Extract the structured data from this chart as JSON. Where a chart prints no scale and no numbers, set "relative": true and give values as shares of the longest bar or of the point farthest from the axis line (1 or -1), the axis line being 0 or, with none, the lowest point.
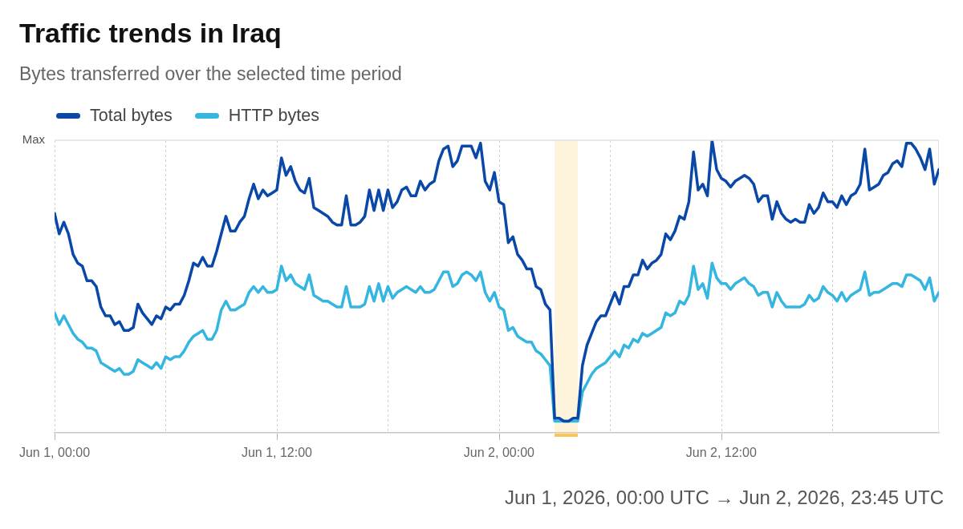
{
  "chart_data": {
    "type": "line",
    "title": "Traffic trends in Iraq",
    "subtitle": "Bytes transferred over the selected time period",
    "x": [
      "2026-06-01T00:00",
      "2026-06-01T00:15",
      "2026-06-01T00:30",
      "2026-06-01T00:45",
      "2026-06-01T01:00",
      "2026-06-01T01:15",
      "2026-06-01T01:30",
      "2026-06-01T01:45",
      "2026-06-01T02:00",
      "2026-06-01T02:15",
      "2026-06-01T02:30",
      "2026-06-01T02:45",
      "2026-06-01T03:00",
      "2026-06-01T03:15",
      "2026-06-01T03:30",
      "2026-06-01T03:45",
      "2026-06-01T04:00",
      "2026-06-01T04:15",
      "2026-06-01T04:30",
      "2026-06-01T04:45",
      "2026-06-01T05:00",
      "2026-06-01T05:15",
      "2026-06-01T05:30",
      "2026-06-01T05:45",
      "2026-06-01T06:00",
      "2026-06-01T06:15",
      "2026-06-01T06:30",
      "2026-06-01T06:45",
      "2026-06-01T07:00",
      "2026-06-01T07:15",
      "2026-06-01T07:30",
      "2026-06-01T07:45",
      "2026-06-01T08:00",
      "2026-06-01T08:15",
      "2026-06-01T08:30",
      "2026-06-01T08:45",
      "2026-06-01T09:00",
      "2026-06-01T09:15",
      "2026-06-01T09:30",
      "2026-06-01T09:45",
      "2026-06-01T10:00",
      "2026-06-01T10:15",
      "2026-06-01T10:30",
      "2026-06-01T10:45",
      "2026-06-01T11:00",
      "2026-06-01T11:15",
      "2026-06-01T11:30",
      "2026-06-01T11:45",
      "2026-06-01T12:00",
      "2026-06-01T12:15",
      "2026-06-01T12:30",
      "2026-06-01T12:45",
      "2026-06-01T13:00",
      "2026-06-01T13:15",
      "2026-06-01T13:30",
      "2026-06-01T13:45",
      "2026-06-01T14:00",
      "2026-06-01T14:15",
      "2026-06-01T14:30",
      "2026-06-01T14:45",
      "2026-06-01T15:00",
      "2026-06-01T15:15",
      "2026-06-01T15:30",
      "2026-06-01T15:45",
      "2026-06-01T16:00",
      "2026-06-01T16:15",
      "2026-06-01T16:30",
      "2026-06-01T16:45",
      "2026-06-01T17:00",
      "2026-06-01T17:15",
      "2026-06-01T17:30",
      "2026-06-01T17:45",
      "2026-06-01T18:00",
      "2026-06-01T18:15",
      "2026-06-01T18:30",
      "2026-06-01T18:45",
      "2026-06-01T19:00",
      "2026-06-01T19:15",
      "2026-06-01T19:30",
      "2026-06-01T19:45",
      "2026-06-01T20:00",
      "2026-06-01T20:15",
      "2026-06-01T20:30",
      "2026-06-01T20:45",
      "2026-06-01T21:00",
      "2026-06-01T21:15",
      "2026-06-01T21:30",
      "2026-06-01T21:45",
      "2026-06-01T22:00",
      "2026-06-01T22:15",
      "2026-06-01T22:30",
      "2026-06-01T22:45",
      "2026-06-01T23:00",
      "2026-06-01T23:15",
      "2026-06-01T23:30",
      "2026-06-01T23:45",
      "2026-06-02T00:00",
      "2026-06-02T00:15",
      "2026-06-02T00:30",
      "2026-06-02T00:45",
      "2026-06-02T01:00",
      "2026-06-02T01:15",
      "2026-06-02T01:30",
      "2026-06-02T01:45",
      "2026-06-02T02:00",
      "2026-06-02T02:15",
      "2026-06-02T02:30",
      "2026-06-02T02:45",
      "2026-06-02T03:00",
      "2026-06-02T03:15",
      "2026-06-02T03:30",
      "2026-06-02T03:45",
      "2026-06-02T04:00",
      "2026-06-02T04:15",
      "2026-06-02T04:30",
      "2026-06-02T04:45",
      "2026-06-02T05:00",
      "2026-06-02T05:15",
      "2026-06-02T05:30",
      "2026-06-02T05:45",
      "2026-06-02T06:00",
      "2026-06-02T06:15",
      "2026-06-02T06:30",
      "2026-06-02T06:45",
      "2026-06-02T07:00",
      "2026-06-02T07:15",
      "2026-06-02T07:30",
      "2026-06-02T07:45",
      "2026-06-02T08:00",
      "2026-06-02T08:15",
      "2026-06-02T08:30",
      "2026-06-02T08:45",
      "2026-06-02T09:00",
      "2026-06-02T09:15",
      "2026-06-02T09:30",
      "2026-06-02T09:45",
      "2026-06-02T10:00",
      "2026-06-02T10:15",
      "2026-06-02T10:30",
      "2026-06-02T10:45",
      "2026-06-02T11:00",
      "2026-06-02T11:15",
      "2026-06-02T11:30",
      "2026-06-02T11:45",
      "2026-06-02T12:00",
      "2026-06-02T12:15",
      "2026-06-02T12:30",
      "2026-06-02T12:45",
      "2026-06-02T13:00",
      "2026-06-02T13:15",
      "2026-06-02T13:30",
      "2026-06-02T13:45",
      "2026-06-02T14:00",
      "2026-06-02T14:15",
      "2026-06-02T14:30",
      "2026-06-02T14:45",
      "2026-06-02T15:00",
      "2026-06-02T15:15",
      "2026-06-02T15:30",
      "2026-06-02T15:45",
      "2026-06-02T16:00",
      "2026-06-02T16:15",
      "2026-06-02T16:30",
      "2026-06-02T16:45",
      "2026-06-02T17:00",
      "2026-06-02T17:15",
      "2026-06-02T17:30",
      "2026-06-02T17:45",
      "2026-06-02T18:00",
      "2026-06-02T18:15",
      "2026-06-02T18:30",
      "2026-06-02T18:45",
      "2026-06-02T19:00",
      "2026-06-02T19:15",
      "2026-06-02T19:30",
      "2026-06-02T19:45",
      "2026-06-02T20:00",
      "2026-06-02T20:15",
      "2026-06-02T20:30",
      "2026-06-02T20:45",
      "2026-06-02T21:00",
      "2026-06-02T21:15",
      "2026-06-02T21:30",
      "2026-06-02T21:45",
      "2026-06-02T22:00",
      "2026-06-02T22:15",
      "2026-06-02T22:30",
      "2026-06-02T22:45",
      "2026-06-02T23:00",
      "2026-06-02T23:15",
      "2026-06-02T23:30",
      "2026-06-02T23:45"
    ],
    "series": [
      {
        "name": "Total bytes",
        "color": "#0a48a8",
        "values": [
          0.75,
          0.68,
          0.72,
          0.68,
          0.61,
          0.58,
          0.57,
          0.52,
          0.52,
          0.5,
          0.43,
          0.4,
          0.4,
          0.37,
          0.38,
          0.35,
          0.35,
          0.36,
          0.44,
          0.41,
          0.39,
          0.37,
          0.4,
          0.39,
          0.43,
          0.42,
          0.44,
          0.44,
          0.47,
          0.52,
          0.58,
          0.57,
          0.6,
          0.57,
          0.57,
          0.62,
          0.68,
          0.74,
          0.69,
          0.69,
          0.72,
          0.74,
          0.8,
          0.85,
          0.8,
          0.83,
          0.81,
          0.82,
          0.83,
          0.94,
          0.88,
          0.91,
          0.86,
          0.83,
          0.82,
          0.87,
          0.77,
          0.76,
          0.75,
          0.74,
          0.72,
          0.71,
          0.71,
          0.81,
          0.71,
          0.71,
          0.72,
          0.74,
          0.83,
          0.76,
          0.83,
          0.76,
          0.83,
          0.77,
          0.79,
          0.83,
          0.84,
          0.81,
          0.81,
          0.86,
          0.83,
          0.85,
          0.86,
          0.93,
          0.97,
          0.98,
          0.91,
          0.93,
          0.98,
          0.98,
          0.98,
          0.94,
          0.99,
          0.86,
          0.83,
          0.89,
          0.79,
          0.78,
          0.65,
          0.67,
          0.61,
          0.59,
          0.56,
          0.56,
          0.5,
          0.49,
          0.44,
          0.42,
          0.05,
          0.05,
          0.04,
          0.04,
          0.05,
          0.05,
          0.23,
          0.3,
          0.34,
          0.38,
          0.4,
          0.4,
          0.44,
          0.48,
          0.44,
          0.5,
          0.5,
          0.54,
          0.54,
          0.59,
          0.56,
          0.58,
          0.59,
          0.61,
          0.68,
          0.66,
          0.69,
          0.74,
          0.73,
          0.79,
          0.96,
          0.83,
          0.85,
          0.81,
          1,
          0.9,
          0.87,
          0.86,
          0.84,
          0.86,
          0.87,
          0.88,
          0.87,
          0.85,
          0.79,
          0.81,
          0.81,
          0.73,
          0.79,
          0.75,
          0.73,
          0.72,
          0.73,
          0.72,
          0.72,
          0.78,
          0.75,
          0.77,
          0.82,
          0.79,
          0.79,
          0.77,
          0.81,
          0.78,
          0.81,
          0.82,
          0.85,
          0.97,
          0.83,
          0.84,
          0.85,
          0.88,
          0.89,
          0.92,
          0.93,
          0.91,
          0.99,
          0.99,
          0.97,
          0.94,
          0.9,
          0.97,
          0.85,
          0.9
        ]
      },
      {
        "name": "HTTP bytes",
        "color": "#34b6e0",
        "values": [
          0.41,
          0.37,
          0.4,
          0.37,
          0.34,
          0.32,
          0.31,
          0.29,
          0.29,
          0.28,
          0.24,
          0.23,
          0.22,
          0.21,
          0.22,
          0.2,
          0.2,
          0.21,
          0.25,
          0.24,
          0.23,
          0.22,
          0.24,
          0.22,
          0.26,
          0.25,
          0.26,
          0.26,
          0.28,
          0.31,
          0.33,
          0.34,
          0.35,
          0.32,
          0.32,
          0.35,
          0.42,
          0.45,
          0.42,
          0.42,
          0.43,
          0.44,
          0.48,
          0.5,
          0.48,
          0.5,
          0.48,
          0.48,
          0.49,
          0.57,
          0.52,
          0.54,
          0.51,
          0.5,
          0.49,
          0.54,
          0.47,
          0.46,
          0.45,
          0.45,
          0.44,
          0.43,
          0.43,
          0.5,
          0.43,
          0.43,
          0.43,
          0.44,
          0.5,
          0.45,
          0.51,
          0.45,
          0.5,
          0.46,
          0.48,
          0.49,
          0.5,
          0.49,
          0.48,
          0.5,
          0.48,
          0.48,
          0.49,
          0.52,
          0.55,
          0.55,
          0.5,
          0.51,
          0.54,
          0.55,
          0.54,
          0.52,
          0.55,
          0.48,
          0.45,
          0.48,
          0.43,
          0.42,
          0.35,
          0.36,
          0.33,
          0.32,
          0.31,
          0.31,
          0.28,
          0.27,
          0.25,
          0.23,
          0.04,
          0.04,
          0.04,
          0.04,
          0.04,
          0.04,
          0.14,
          0.17,
          0.2,
          0.22,
          0.23,
          0.24,
          0.26,
          0.28,
          0.26,
          0.3,
          0.29,
          0.32,
          0.31,
          0.34,
          0.33,
          0.34,
          0.35,
          0.36,
          0.41,
          0.4,
          0.41,
          0.45,
          0.44,
          0.47,
          0.57,
          0.49,
          0.51,
          0.46,
          0.58,
          0.53,
          0.51,
          0.51,
          0.49,
          0.51,
          0.52,
          0.53,
          0.51,
          0.5,
          0.47,
          0.48,
          0.48,
          0.43,
          0.48,
          0.45,
          0.43,
          0.43,
          0.43,
          0.43,
          0.44,
          0.47,
          0.45,
          0.46,
          0.5,
          0.48,
          0.47,
          0.45,
          0.48,
          0.45,
          0.47,
          0.48,
          0.49,
          0.55,
          0.47,
          0.48,
          0.48,
          0.49,
          0.5,
          0.51,
          0.51,
          0.5,
          0.54,
          0.54,
          0.53,
          0.52,
          0.49,
          0.53,
          0.45,
          0.48
        ]
      }
    ],
    "relative": true,
    "xlim": [
      "2026-06-01T00:00",
      "2026-06-02T23:45"
    ],
    "xticks": [
      {
        "value": "2026-06-01T00:00",
        "label": "Jun 1, 00:00"
      },
      {
        "value": "2026-06-01T06:00",
        "label": null
      },
      {
        "value": "2026-06-01T12:00",
        "label": "Jun 1, 12:00"
      },
      {
        "value": "2026-06-01T18:00",
        "label": null
      },
      {
        "value": "2026-06-02T00:00",
        "label": "Jun 2, 00:00"
      },
      {
        "value": "2026-06-02T06:00",
        "label": null
      },
      {
        "value": "2026-06-02T12:00",
        "label": "Jun 2, 12:00"
      },
      {
        "value": "2026-06-02T18:00",
        "label": null
      }
    ],
    "grid": "x",
    "legend": "top left",
    "ref_lines": [
      {
        "axis": "y",
        "value": 1,
        "label": "Max",
        "color": "#e0e0e0"
      }
    ],
    "bands": [
      {
        "axis": "x",
        "from": "2026-06-02T03:00",
        "to": "2026-06-02T04:15",
        "color": "#f9c74f"
      }
    ],
    "annotations": [
      "Jun 1, 2026, 00:00 UTC → Jun 2, 2026, 23:45 UTC"
    ]
  }
}
